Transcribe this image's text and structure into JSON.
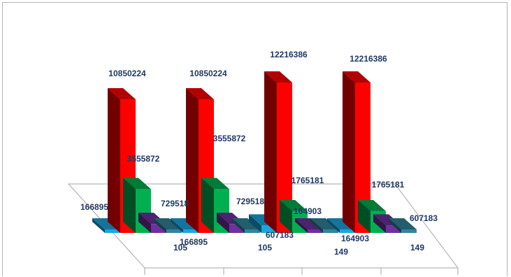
{
  "chart_data": {
    "type": "bar",
    "style": "3d-clustered-column",
    "title": "",
    "xlabel": "",
    "ylabel": "",
    "categories": [
      "",
      "",
      "",
      ""
    ],
    "legend": "none",
    "grid": false,
    "colors": {
      "series_1": "#1aa7e0",
      "series_2": "#ff0000",
      "series_3": "#00b050",
      "series_4": "#7030a0",
      "series_5": "#31869b",
      "label": "#1f3864",
      "floor_line": "#a6a6a6"
    },
    "series": [
      {
        "values": [
          166895,
          166895,
          607183,
          164903
        ]
      },
      {
        "values": [
          10850224,
          10850224,
          12216386,
          12216386
        ]
      },
      {
        "values": [
          3555872,
          3555872,
          1765181,
          1765181
        ]
      },
      {
        "values": [
          729518,
          729518,
          164903,
          607183
        ]
      },
      {
        "values": [
          105,
          105,
          149,
          149
        ]
      }
    ]
  }
}
